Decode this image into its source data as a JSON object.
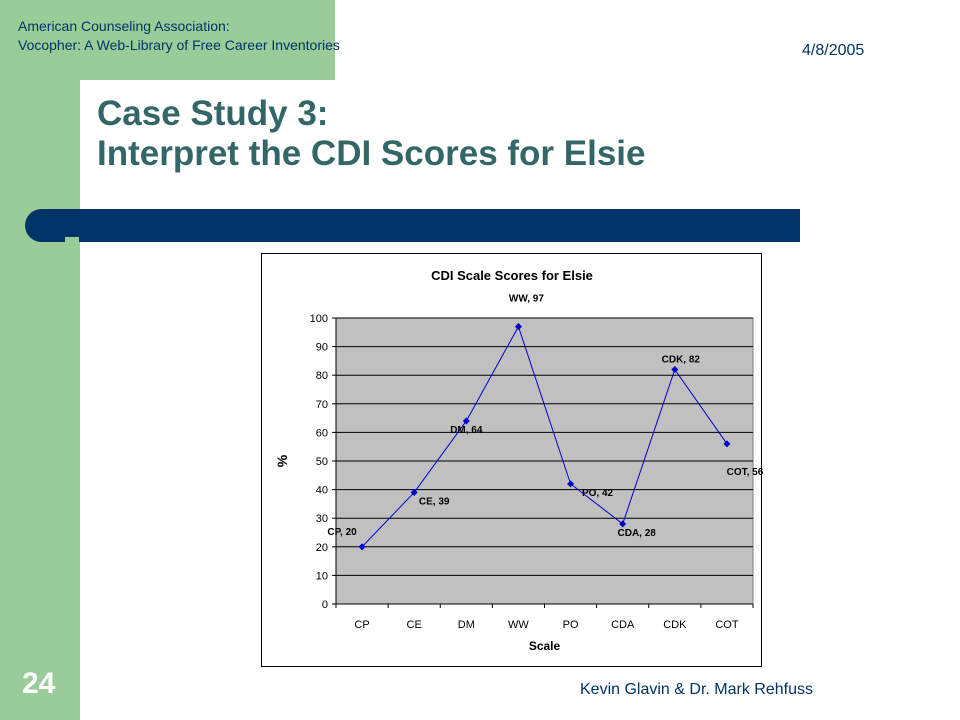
{
  "header": {
    "org_line1": "American Counseling Association:",
    "org_line2": "Vocopher: A Web-Library of Free Career Inventories",
    "date": "4/8/2005"
  },
  "title": {
    "line1": "Case Study 3:",
    "line2": "Interpret the CDI Scores for Elsie"
  },
  "footer": {
    "slide_number": "24",
    "authors": "Kevin Glavin & Dr. Mark Rehfuss"
  },
  "colors": {
    "accent_green": "#99cc99",
    "title_teal": "#336666",
    "bar_navy": "#003366",
    "plot_bg": "#c0c0c0",
    "series_line": "#0000cc"
  },
  "chart_data": {
    "type": "line",
    "title": "CDI Scale Scores for Elsie",
    "xlabel": "Scale",
    "ylabel": "%",
    "categories": [
      "CP",
      "CE",
      "DM",
      "WW",
      "PO",
      "CDA",
      "CDK",
      "COT"
    ],
    "series": [
      {
        "values": [
          20,
          39,
          64,
          97,
          42,
          28,
          82,
          56
        ]
      }
    ],
    "data_labels": [
      "CP, 20",
      "CE, 39",
      "DM, 64",
      "WW, 97",
      "PO, 42",
      "CDA, 28",
      "CDK, 82",
      "COT, 56"
    ],
    "ylim": [
      0,
      100
    ],
    "yticks": [
      0,
      10,
      20,
      30,
      40,
      50,
      60,
      70,
      80,
      90,
      100
    ],
    "grid": true,
    "legend": "none"
  }
}
